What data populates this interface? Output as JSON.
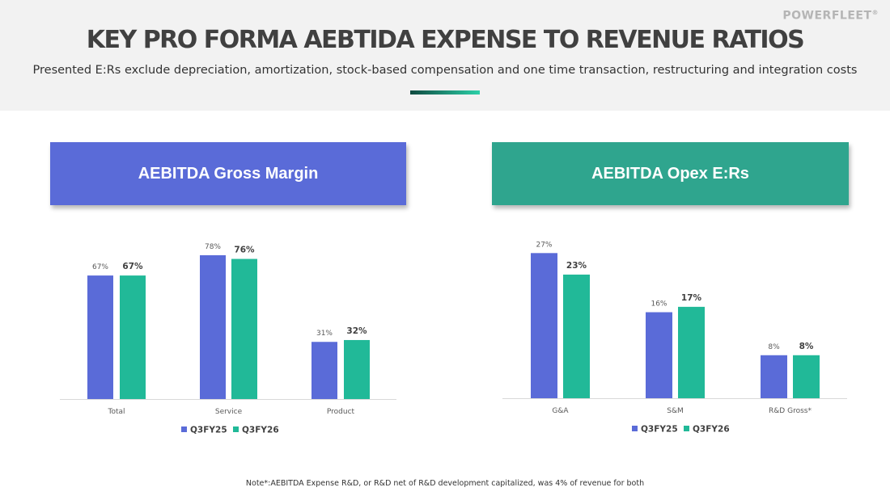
{
  "header": {
    "logo_text": "POWERFLEET",
    "logo_mark": "®",
    "title": "KEY PRO FORMA AEBTIDA EXPENSE TO REVENUE RATIOS",
    "subtitle": "Presented E:Rs exclude depreciation, amortization, stock-based compensation and one time transaction, restructuring and integration costs"
  },
  "colors": {
    "q3fy25": "#5a6bd8",
    "q3fy26": "#21b998",
    "banner_left": "#5a6bd8",
    "banner_right": "#2fa58e",
    "header_band": "#f2f2f2"
  },
  "panels": {
    "left_banner": "AEBITDA Gross Margin",
    "right_banner": "AEBITDA Opex E:Rs"
  },
  "chart_data": [
    {
      "type": "bar",
      "title": "AEBITDA Gross Margin",
      "categories": [
        "Total",
        "Service",
        "Product"
      ],
      "series": [
        {
          "name": "Q3FY25",
          "values": [
            67,
            78,
            31
          ],
          "labels": [
            "67%",
            "78%",
            "31%"
          ]
        },
        {
          "name": "Q3FY26",
          "values": [
            67,
            76,
            32
          ],
          "labels": [
            "67%",
            "76%",
            "32%"
          ]
        }
      ],
      "ylim": [
        0,
        85
      ],
      "grid": false,
      "legend": "bottom"
    },
    {
      "type": "bar",
      "title": "AEBITDA Opex E:Rs",
      "categories": [
        "G&A",
        "S&M",
        "R&D Gross*"
      ],
      "series": [
        {
          "name": "Q3FY25",
          "values": [
            27,
            16,
            8
          ],
          "labels": [
            "27%",
            "16%",
            "8%"
          ]
        },
        {
          "name": "Q3FY26",
          "values": [
            23,
            17,
            8
          ],
          "labels": [
            "23%",
            "17%",
            "8%"
          ]
        }
      ],
      "ylim": [
        0,
        29
      ],
      "grid": false,
      "legend": "bottom"
    }
  ],
  "footnote": "Note*:AEBITDA Expense R&D, or  R&D net of R&D development capitalized, was 4% of revenue for both"
}
